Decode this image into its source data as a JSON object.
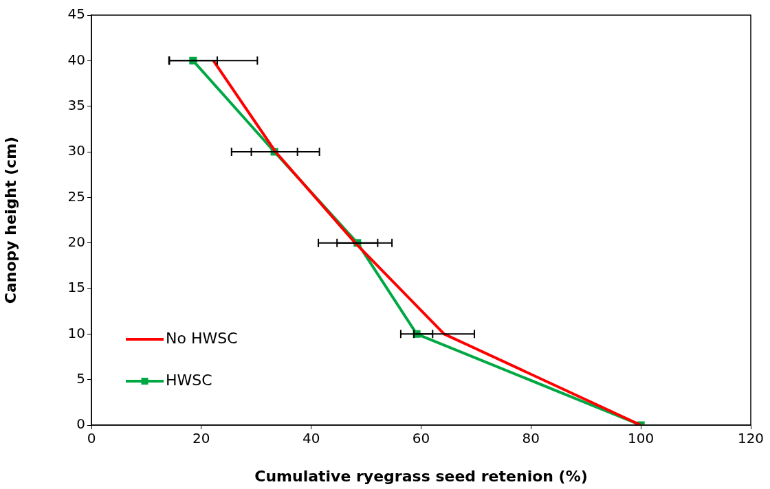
{
  "chart_data": {
    "type": "line",
    "xlabel": "Cumulative ryegrass seed retenion (%)",
    "ylabel": "Canopy height (cm)",
    "xlim": [
      0,
      120
    ],
    "xticks": [
      0,
      20,
      40,
      60,
      80,
      100,
      120
    ],
    "ylim": [
      0,
      45
    ],
    "yticks": [
      0,
      5,
      10,
      15,
      20,
      25,
      30,
      35,
      40,
      45
    ],
    "grid": false,
    "legend": "bottom left",
    "line_style": "solid",
    "series": [
      {
        "name": "No HWSC",
        "color": "#ff0000",
        "marker": "none",
        "x": [
          22.2,
          33.5,
          48.0,
          64.2,
          100
        ],
        "values": [
          40,
          30,
          20,
          10,
          0
        ],
        "xerrors": [
          8,
          8,
          6.7,
          5.5,
          null
        ]
      },
      {
        "name": "HWSC",
        "color": "#00a844",
        "marker": "square",
        "x": [
          18.5,
          33.3,
          48.4,
          59.2,
          100
        ],
        "values": [
          40,
          30,
          20,
          10,
          0
        ],
        "xerrors": [
          4.4,
          4.2,
          3.7,
          2.9,
          null
        ]
      }
    ]
  }
}
